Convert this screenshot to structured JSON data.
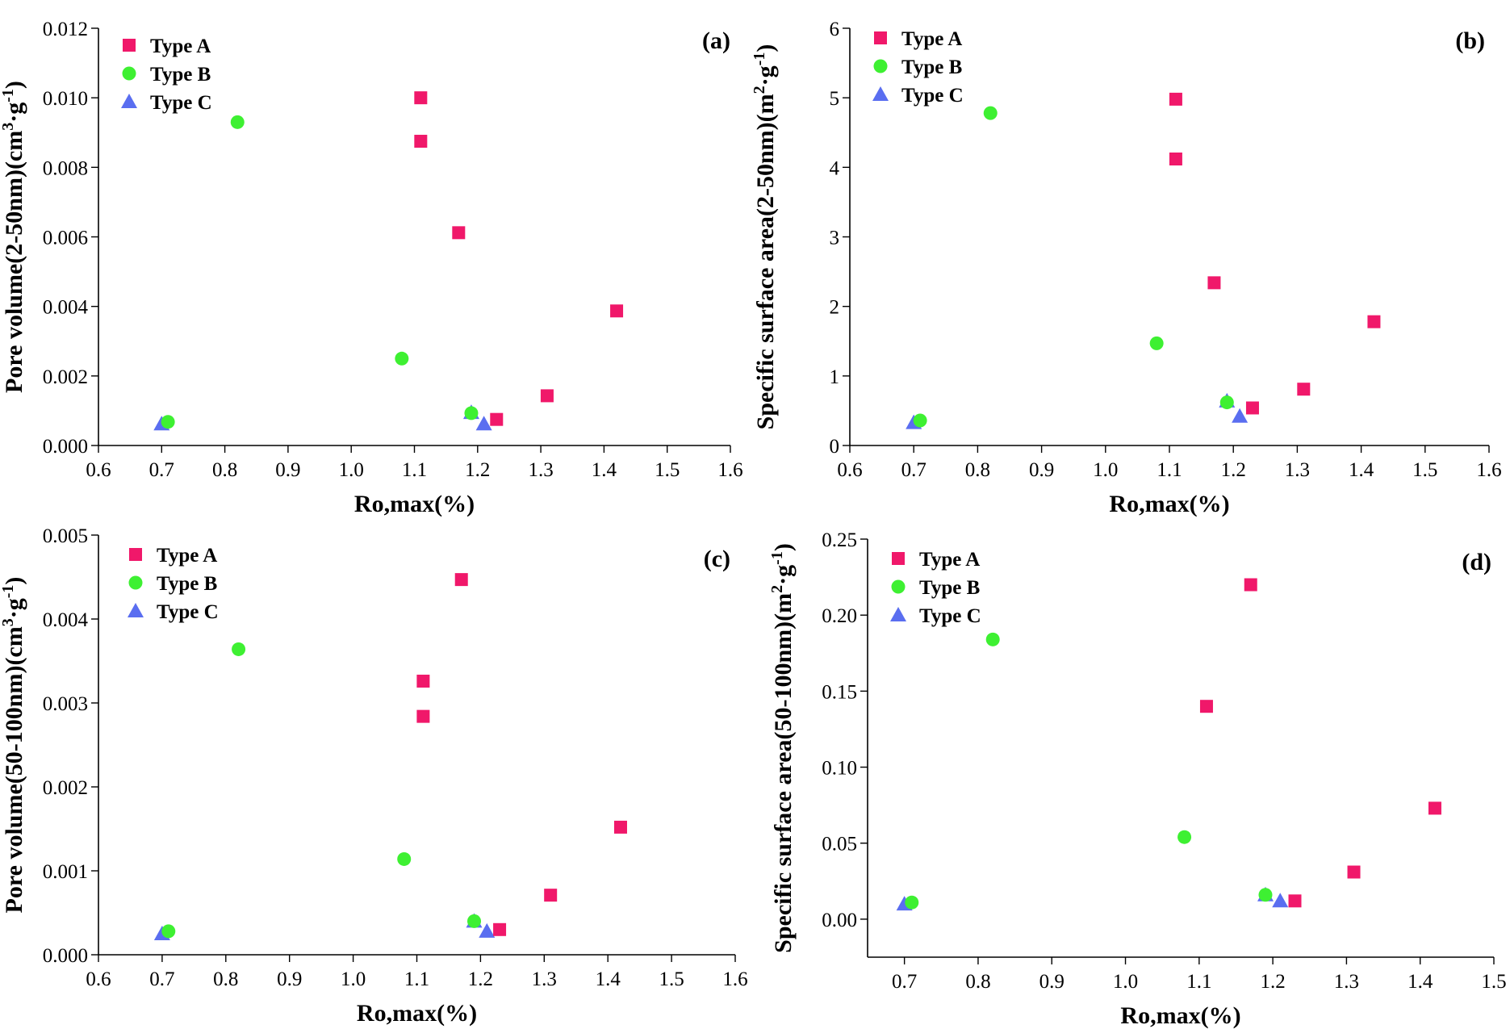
{
  "series_styles": {
    "Type A": {
      "color": "#f0186a",
      "marker": "square"
    },
    "Type B": {
      "color": "#3ef032",
      "marker": "circle"
    },
    "Type C": {
      "color": "#5a6ef0",
      "marker": "triangle"
    }
  },
  "chart_data": [
    {
      "type": "scatter",
      "panel": "(a)",
      "xlabel": "Ro,max(%)",
      "ylabel": "Pore volume(2-50nm)(cm³·g⁻¹)",
      "xlim": [
        0.6,
        1.6
      ],
      "ylim": [
        0,
        0.012
      ],
      "xticks": [
        "0.6",
        "0.7",
        "0.8",
        "0.9",
        "1.0",
        "1.1",
        "1.2",
        "1.3",
        "1.4",
        "1.5",
        "1.6"
      ],
      "yticks": [
        "0.000",
        "0.002",
        "0.004",
        "0.006",
        "0.008",
        "0.010",
        "0.012"
      ],
      "legend_position": "top-left",
      "series": [
        {
          "name": "Type A",
          "x": [
            1.11,
            1.11,
            1.17,
            1.42,
            1.31,
            1.23
          ],
          "y": [
            0.01,
            0.00875,
            0.00612,
            0.00387,
            0.00143,
            0.00075
          ]
        },
        {
          "name": "Type B",
          "x": [
            0.82,
            1.08,
            0.71,
            1.19
          ],
          "y": [
            0.0093,
            0.0025,
            0.00068,
            0.00093
          ]
        },
        {
          "name": "Type C",
          "x": [
            0.7,
            1.19,
            1.21
          ],
          "y": [
            0.00062,
            0.00095,
            0.00062
          ]
        }
      ]
    },
    {
      "type": "scatter",
      "panel": "(b)",
      "xlabel": "Ro,max(%)",
      "ylabel": "Specific surface area(2-50nm)(m²·g⁻¹)",
      "xlim": [
        0.6,
        1.6
      ],
      "ylim": [
        0,
        6
      ],
      "xticks": [
        "0.6",
        "0.7",
        "0.8",
        "0.9",
        "1.0",
        "1.1",
        "1.2",
        "1.3",
        "1.4",
        "1.5",
        "1.6"
      ],
      "yticks": [
        "0",
        "1",
        "2",
        "3",
        "4",
        "5",
        "6"
      ],
      "legend_position": "top-left",
      "series": [
        {
          "name": "Type A",
          "x": [
            1.11,
            1.11,
            1.17,
            1.42,
            1.31,
            1.23
          ],
          "y": [
            4.98,
            4.12,
            2.34,
            1.78,
            0.81,
            0.54
          ]
        },
        {
          "name": "Type B",
          "x": [
            0.82,
            1.08,
            0.71,
            1.19
          ],
          "y": [
            4.78,
            1.47,
            0.36,
            0.62
          ]
        },
        {
          "name": "Type C",
          "x": [
            0.7,
            1.19,
            1.21
          ],
          "y": [
            0.33,
            0.64,
            0.42
          ]
        }
      ]
    },
    {
      "type": "scatter",
      "panel": "(c)",
      "xlabel": "Ro,max(%)",
      "ylabel": "Pore volume(50-100nm)(cm³·g⁻¹)",
      "xlim": [
        0.6,
        1.6
      ],
      "ylim": [
        0,
        0.005
      ],
      "xticks": [
        "0.6",
        "0.7",
        "0.8",
        "0.9",
        "1.0",
        "1.1",
        "1.2",
        "1.3",
        "1.4",
        "1.5",
        "1.6"
      ],
      "yticks": [
        "0.000",
        "0.001",
        "0.002",
        "0.003",
        "0.004",
        "0.005"
      ],
      "legend_position": "top-left",
      "series": [
        {
          "name": "Type A",
          "x": [
            1.17,
            1.11,
            1.11,
            1.42,
            1.31,
            1.23
          ],
          "y": [
            0.00447,
            0.00326,
            0.00284,
            0.00152,
            0.00071,
            0.0003
          ]
        },
        {
          "name": "Type B",
          "x": [
            0.82,
            1.08,
            0.71,
            1.19
          ],
          "y": [
            0.00364,
            0.00114,
            0.00028,
            0.0004
          ]
        },
        {
          "name": "Type C",
          "x": [
            0.7,
            1.19,
            1.21
          ],
          "y": [
            0.00025,
            0.0004,
            0.00028
          ]
        }
      ]
    },
    {
      "type": "scatter",
      "panel": "(d)",
      "xlabel": "Ro,max(%)",
      "ylabel": "Specific surface area(50-100nm)(m²·g⁻¹)",
      "xlim": [
        0.65,
        1.5
      ],
      "ylim": [
        -0.025,
        0.25
      ],
      "xticks": [
        "0.7",
        "0.8",
        "0.9",
        "1.0",
        "1.1",
        "1.2",
        "1.3",
        "1.4",
        "1.5"
      ],
      "yticks": [
        "0.00",
        "0.05",
        "0.10",
        "0.15",
        "0.20",
        "0.25"
      ],
      "legend_position": "top-left",
      "series": [
        {
          "name": "Type A",
          "x": [
            1.17,
            1.11,
            1.42,
            1.31,
            1.23
          ],
          "y": [
            0.22,
            0.14,
            0.073,
            0.031,
            0.012
          ]
        },
        {
          "name": "Type B",
          "x": [
            0.82,
            1.08,
            0.71,
            1.19
          ],
          "y": [
            0.184,
            0.054,
            0.011,
            0.016
          ]
        },
        {
          "name": "Type C",
          "x": [
            0.7,
            1.19,
            1.21
          ],
          "y": [
            0.01,
            0.016,
            0.012
          ]
        }
      ]
    }
  ]
}
